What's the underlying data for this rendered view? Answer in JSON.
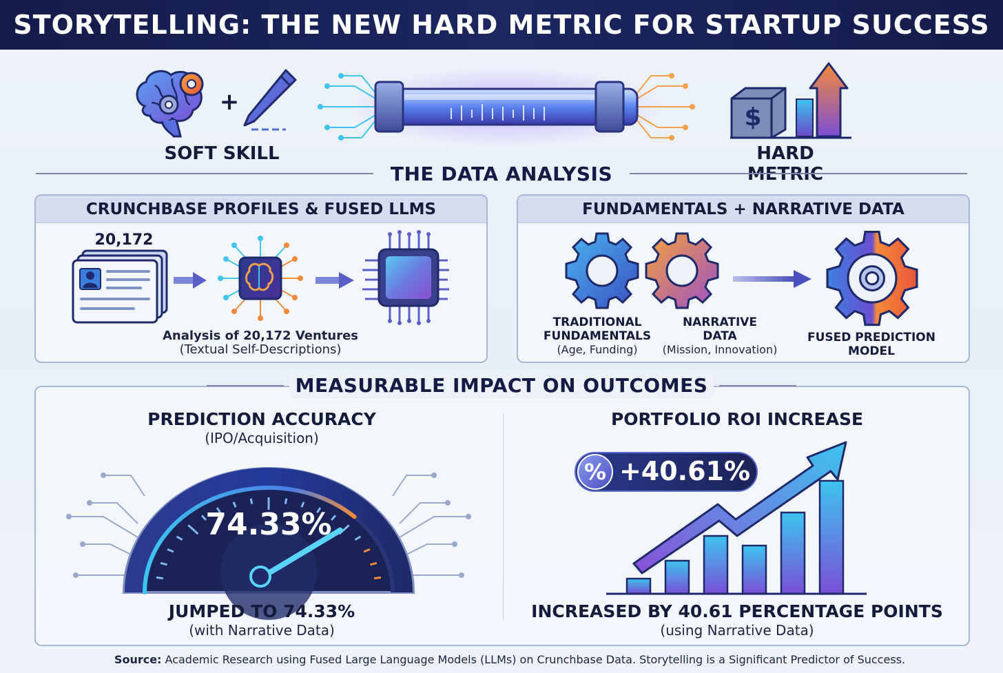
{
  "header": {
    "title": "STORYTELLING: THE NEW HARD METRIC FOR STARTUP SUCCESS"
  },
  "hero": {
    "left_label": "SOFT SKILL",
    "plus_sign": "+",
    "right_label": "HARD METRIC",
    "dollar_sign": "$"
  },
  "data_analysis": {
    "title": "THE DATA ANALYSIS",
    "left_panel": {
      "title": "CRUNCHBASE PROFILES & FUSED LLMS",
      "count": "20,172",
      "caption": "Analysis of 20,172 Ventures",
      "caption_sub": "(Textual Self-Descriptions)"
    },
    "right_panel": {
      "title": "FUNDAMENTALS + NARRATIVE DATA",
      "gear1_label_line1": "TRADITIONAL",
      "gear1_label_line2": "FUNDAMENTALS",
      "gear1_sub": "(Age, Funding)",
      "gear2_label_line1": "NARRATIVE",
      "gear2_label_line2": "DATA",
      "gear2_sub": "(Mission, Innovation)",
      "result_label_line1": "FUSED PREDICTION",
      "result_label_line2": "MODEL"
    }
  },
  "impact": {
    "title": "MEASURABLE IMPACT ON OUTCOMES",
    "accuracy": {
      "title": "PREDICTION ACCURACY",
      "subtitle": "(IPO/Acquisition)",
      "gauge_value": "74.33%",
      "gauge_fraction": 0.7433,
      "footer": "JUMPED TO 74.33%",
      "footer_sub": "(with Narrative Data)"
    },
    "roi": {
      "title": "PORTFOLIO ROI INCREASE",
      "badge_symbol": "%",
      "badge_value": "+40.61%",
      "footer": "INCREASED BY 40.61 PERCENTAGE POINTS",
      "footer_sub": "(using Narrative Data)"
    }
  },
  "footer": {
    "source_label": "Source:",
    "source_text": " Academic Research using Fused Large Language Models (LLMs) on Crunchbase Data. Storytelling is a Significant Predictor of Success."
  },
  "colors": {
    "navy": "#141c4a",
    "blue": "#3f7fe0",
    "cyan": "#3ec4ef",
    "purple": "#7a4fd6",
    "orange": "#f08a3a"
  }
}
